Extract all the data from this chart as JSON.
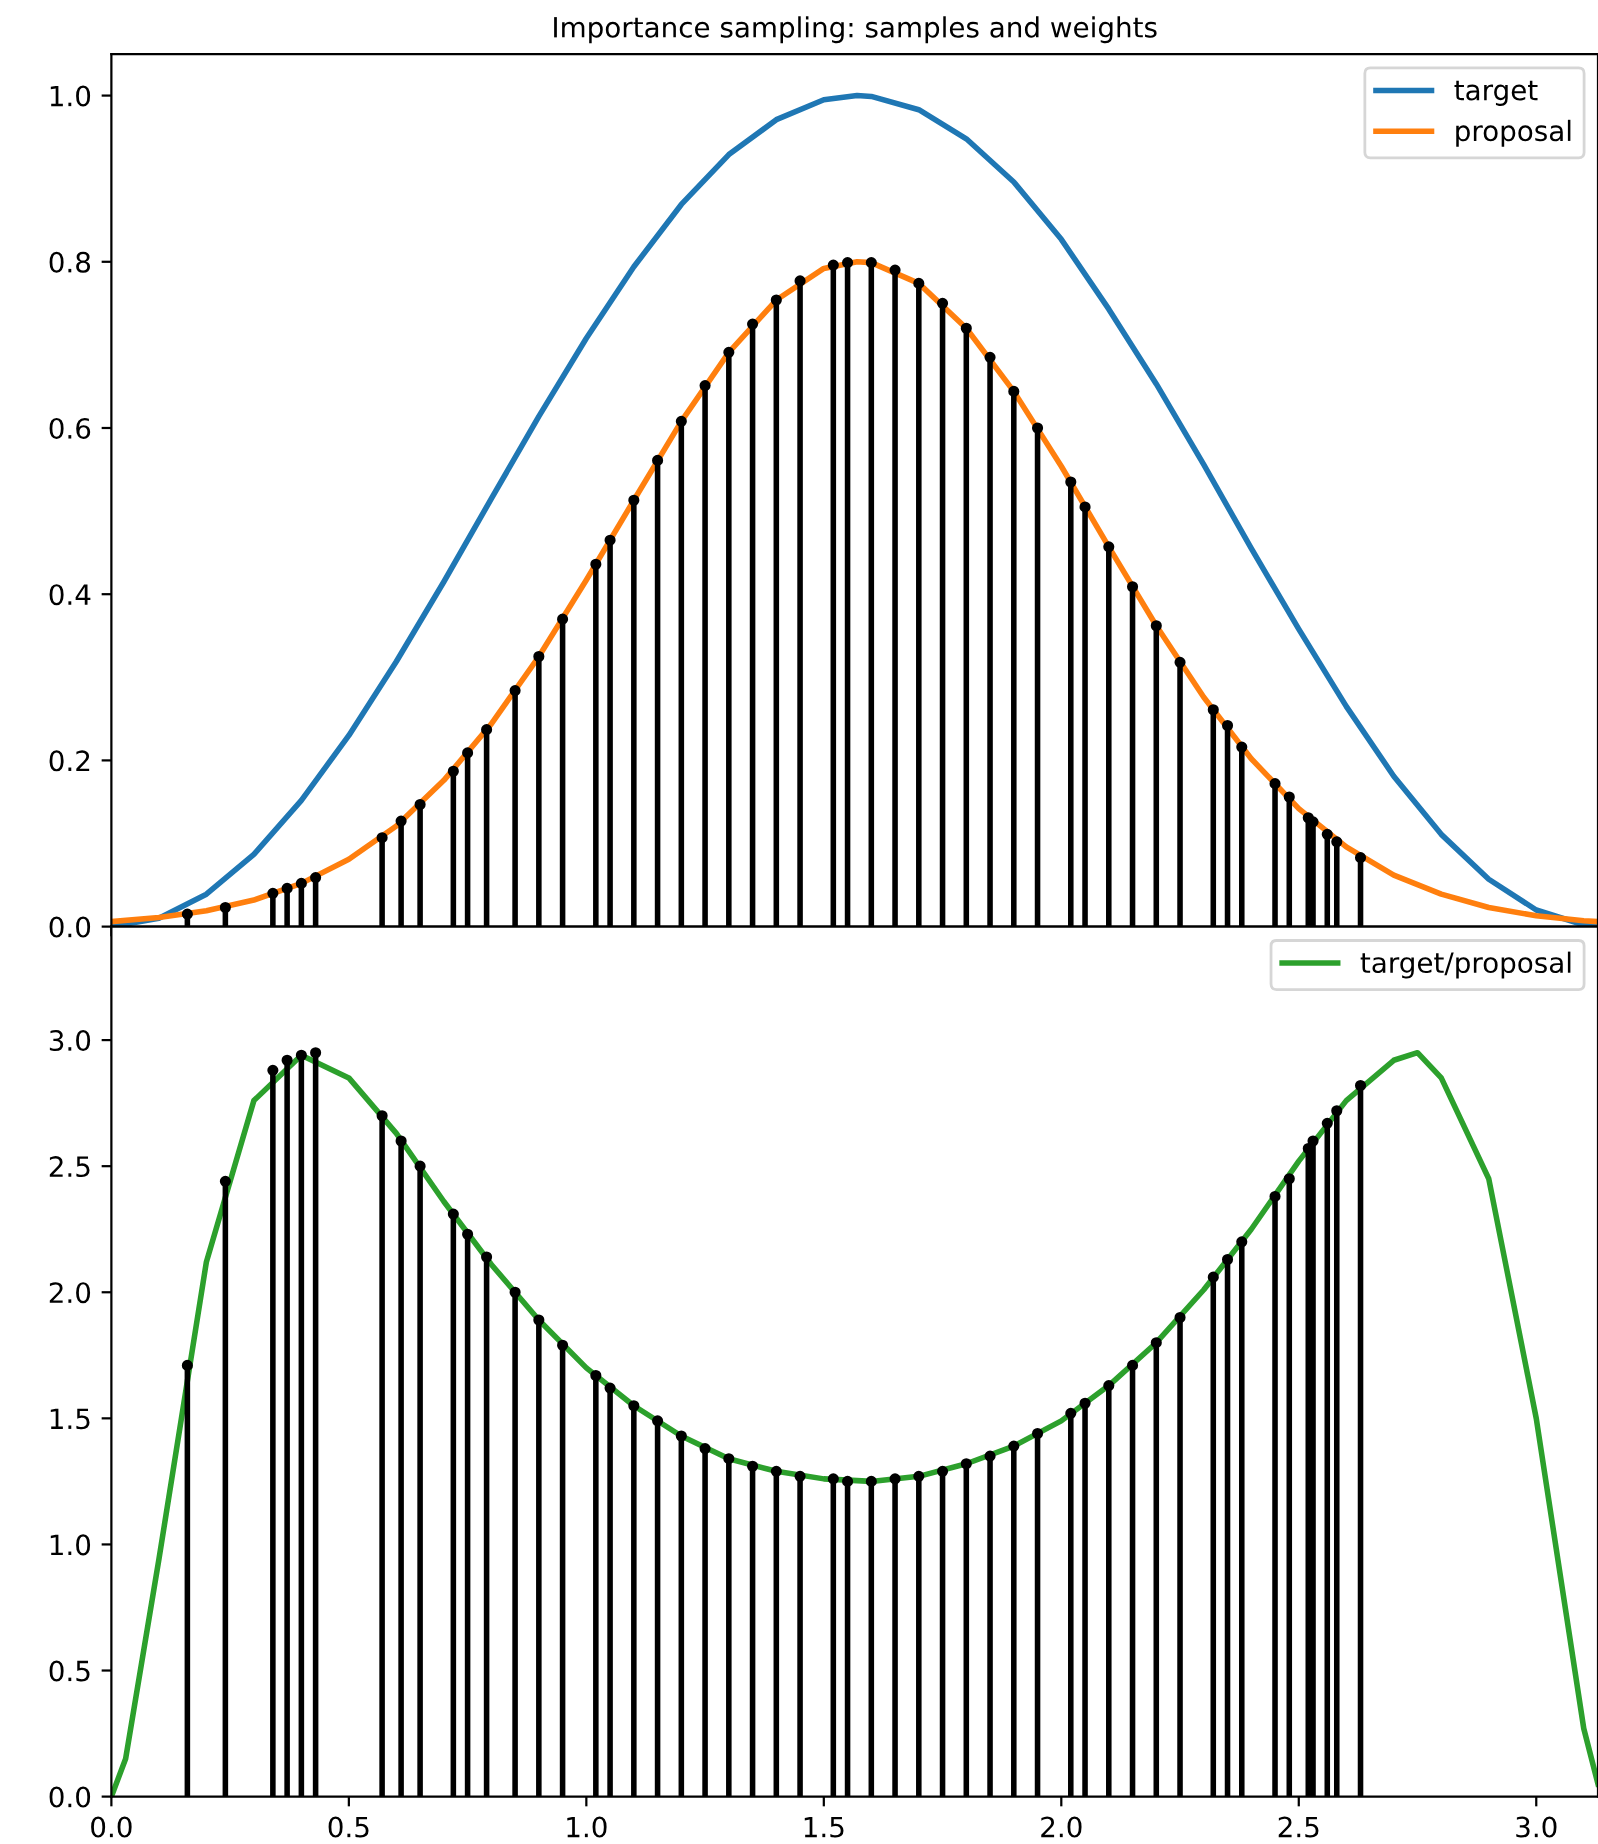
{
  "chart_data": [
    {
      "type": "line",
      "title": "Importance sampling: samples and weights",
      "xlim": [
        0,
        3.13
      ],
      "ylim": [
        0,
        1.05
      ],
      "yticks": [
        {
          "value": 0,
          "label": "0.0"
        },
        0.2,
        0.4,
        0.6,
        0.8,
        {
          "value": 1,
          "label": "1.0"
        }
      ],
      "tick_labels": "y",
      "legend": "top right",
      "grid": false,
      "series": [
        {
          "name": "target",
          "color": "#1f77b4",
          "x": [
            0,
            0.1,
            0.2,
            0.3,
            0.4,
            0.5,
            0.6,
            0.7,
            0.8,
            0.9,
            1.0,
            1.1,
            1.2,
            1.3,
            1.4,
            1.5,
            1.57,
            1.6,
            1.7,
            1.8,
            1.9,
            2.0,
            2.1,
            2.2,
            2.3,
            2.4,
            2.5,
            2.6,
            2.7,
            2.8,
            2.9,
            3.0,
            3.1,
            3.13
          ],
          "values": [
            0,
            0.01,
            0.039,
            0.087,
            0.152,
            0.23,
            0.319,
            0.415,
            0.515,
            0.614,
            0.708,
            0.794,
            0.869,
            0.929,
            0.971,
            0.995,
            1.0,
            0.999,
            0.983,
            0.948,
            0.896,
            0.827,
            0.743,
            0.653,
            0.556,
            0.455,
            0.358,
            0.265,
            0.181,
            0.111,
            0.057,
            0.02,
            0.002,
            0
          ]
        },
        {
          "name": "proposal",
          "color": "#ff7f0e",
          "x": [
            0,
            0.1,
            0.2,
            0.3,
            0.4,
            0.5,
            0.6,
            0.7,
            0.8,
            0.9,
            1.0,
            1.1,
            1.2,
            1.3,
            1.4,
            1.5,
            1.57,
            1.6,
            1.7,
            1.8,
            1.9,
            2.0,
            2.1,
            2.2,
            2.3,
            2.4,
            2.5,
            2.6,
            2.7,
            2.8,
            2.9,
            3.0,
            3.1,
            3.13
          ],
          "values": [
            0.006,
            0.011,
            0.019,
            0.032,
            0.052,
            0.081,
            0.121,
            0.176,
            0.244,
            0.325,
            0.417,
            0.513,
            0.608,
            0.691,
            0.754,
            0.792,
            0.8,
            0.799,
            0.774,
            0.72,
            0.644,
            0.554,
            0.457,
            0.362,
            0.276,
            0.202,
            0.142,
            0.096,
            0.062,
            0.039,
            0.023,
            0.013,
            0.007,
            0.006
          ]
        },
        {
          "type": "lollipop",
          "color": "#000000",
          "marker": "circle",
          "x": [
            0.16,
            0.24,
            0.34,
            0.37,
            0.4,
            0.43,
            0.57,
            0.61,
            0.65,
            0.72,
            0.75,
            0.79,
            0.85,
            0.9,
            0.95,
            1.02,
            1.05,
            1.1,
            1.15,
            1.2,
            1.25,
            1.3,
            1.35,
            1.4,
            1.45,
            1.52,
            1.55,
            1.6,
            1.65,
            1.7,
            1.75,
            1.8,
            1.85,
            1.9,
            1.95,
            2.02,
            2.05,
            2.1,
            2.15,
            2.2,
            2.25,
            2.32,
            2.35,
            2.38,
            2.45,
            2.48,
            2.52,
            2.53,
            2.56,
            2.58,
            2.63
          ],
          "values": [
            0.015,
            0.023,
            0.04,
            0.046,
            0.052,
            0.059,
            0.107,
            0.127,
            0.147,
            0.187,
            0.209,
            0.237,
            0.284,
            0.325,
            0.37,
            0.436,
            0.465,
            0.513,
            0.561,
            0.608,
            0.651,
            0.691,
            0.725,
            0.754,
            0.777,
            0.796,
            0.799,
            0.799,
            0.79,
            0.774,
            0.75,
            0.72,
            0.685,
            0.644,
            0.6,
            0.535,
            0.505,
            0.457,
            0.409,
            0.362,
            0.318,
            0.261,
            0.242,
            0.216,
            0.172,
            0.156,
            0.131,
            0.126,
            0.111,
            0.102,
            0.083
          ]
        }
      ]
    },
    {
      "type": "line",
      "xlim": [
        0,
        3.13
      ],
      "ylim": [
        0,
        3.45
      ],
      "xticks": [
        {
          "value": 0,
          "label": "0.0"
        },
        0.5,
        {
          "value": 1,
          "label": "1.0"
        },
        1.5,
        {
          "value": 2,
          "label": "2.0"
        },
        2.5,
        {
          "value": 3,
          "label": "3.0"
        }
      ],
      "yticks": [
        {
          "value": 0,
          "label": "0.0"
        },
        0.5,
        {
          "value": 1,
          "label": "1.0"
        },
        1.5,
        {
          "value": 2,
          "label": "2.0"
        },
        2.5,
        {
          "value": 3,
          "label": "3.0"
        }
      ],
      "legend": "top right",
      "grid": false,
      "series": [
        {
          "name": "target/proposal",
          "color": "#2ca02c",
          "x": [
            0,
            0.03,
            0.1,
            0.2,
            0.3,
            0.4,
            0.5,
            0.6,
            0.7,
            0.8,
            0.9,
            1.0,
            1.1,
            1.2,
            1.3,
            1.4,
            1.5,
            1.6,
            1.7,
            1.8,
            1.9,
            2.0,
            2.1,
            2.2,
            2.3,
            2.4,
            2.5,
            2.6,
            2.7,
            2.75,
            2.8,
            2.9,
            3.0,
            3.1,
            3.13
          ],
          "values": [
            0,
            0.15,
            0.94,
            2.12,
            2.76,
            2.94,
            2.85,
            2.63,
            2.36,
            2.11,
            1.89,
            1.7,
            1.55,
            1.43,
            1.34,
            1.29,
            1.26,
            1.25,
            1.27,
            1.32,
            1.39,
            1.49,
            1.63,
            1.8,
            2.01,
            2.25,
            2.52,
            2.76,
            2.92,
            2.95,
            2.85,
            2.45,
            1.5,
            0.27,
            0.05
          ]
        },
        {
          "type": "lollipop",
          "color": "#000000",
          "marker": "circle",
          "x": [
            0.16,
            0.24,
            0.34,
            0.37,
            0.4,
            0.43,
            0.57,
            0.61,
            0.65,
            0.72,
            0.75,
            0.79,
            0.85,
            0.9,
            0.95,
            1.02,
            1.05,
            1.1,
            1.15,
            1.2,
            1.25,
            1.3,
            1.35,
            1.4,
            1.45,
            1.52,
            1.55,
            1.6,
            1.65,
            1.7,
            1.75,
            1.8,
            1.85,
            1.9,
            1.95,
            2.02,
            2.05,
            2.1,
            2.15,
            2.2,
            2.25,
            2.32,
            2.35,
            2.38,
            2.45,
            2.48,
            2.52,
            2.53,
            2.56,
            2.58,
            2.63
          ],
          "values": [
            1.71,
            2.44,
            2.88,
            2.92,
            2.94,
            2.95,
            2.7,
            2.6,
            2.5,
            2.31,
            2.23,
            2.14,
            2.0,
            1.89,
            1.79,
            1.67,
            1.62,
            1.55,
            1.49,
            1.43,
            1.38,
            1.34,
            1.31,
            1.29,
            1.27,
            1.26,
            1.25,
            1.25,
            1.26,
            1.27,
            1.29,
            1.32,
            1.35,
            1.39,
            1.44,
            1.52,
            1.56,
            1.63,
            1.71,
            1.8,
            1.9,
            2.06,
            2.13,
            2.2,
            2.38,
            2.45,
            2.57,
            2.6,
            2.67,
            2.72,
            2.82
          ]
        }
      ]
    }
  ]
}
